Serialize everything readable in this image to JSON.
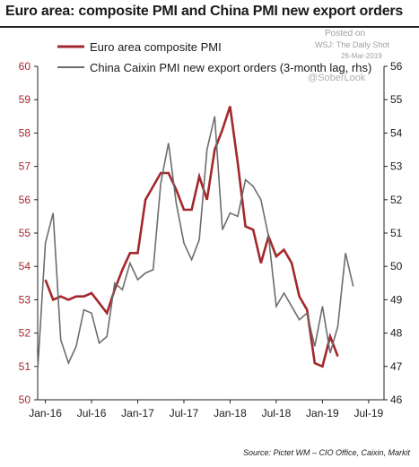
{
  "title": "Euro area: composite PMI and China PMI new export orders",
  "watermark": {
    "posted_on": "Posted on",
    "publisher": "WSJ: The Daily Shot",
    "date": "26-Mar-2019",
    "handle": "@SoberLook"
  },
  "source": "Source: Pictet WM – CIO Office, Caixin, Markit",
  "colors": {
    "euro_series": "#a3282c",
    "china_series": "#6d6d6d",
    "left_axis_text": "#a3282c",
    "right_axis_text": "#1a1a1a",
    "axis": "#222222"
  },
  "chart_data": {
    "type": "line",
    "title": "Euro area: composite PMI and China PMI new export orders",
    "legend_position": "top-left",
    "grid": false,
    "x_tick_labels": [
      "Jan-16",
      "Jul-16",
      "Jan-17",
      "Jul-17",
      "Jan-18",
      "Jul-18",
      "Jan-19",
      "Jul-19"
    ],
    "x_range": [
      "2015-12",
      "2019-09"
    ],
    "y_left": {
      "range": [
        50,
        60
      ],
      "ticks": [
        "50",
        "51",
        "52",
        "53",
        "54",
        "55",
        "56",
        "57",
        "58",
        "59",
        "60"
      ]
    },
    "y_right": {
      "range": [
        46,
        56
      ],
      "ticks": [
        "46",
        "47",
        "48",
        "49",
        "50",
        "51",
        "52",
        "53",
        "54",
        "55",
        "56"
      ]
    },
    "series": [
      {
        "name": "Euro area composite PMI",
        "axis": "left",
        "color": "#a3282c",
        "points": [
          [
            "2016-01",
            53.6
          ],
          [
            "2016-02",
            53.0
          ],
          [
            "2016-03",
            53.1
          ],
          [
            "2016-04",
            53.0
          ],
          [
            "2016-05",
            53.1
          ],
          [
            "2016-06",
            53.1
          ],
          [
            "2016-07",
            53.2
          ],
          [
            "2016-08",
            52.9
          ],
          [
            "2016-09",
            52.6
          ],
          [
            "2016-10",
            53.3
          ],
          [
            "2016-11",
            53.9
          ],
          [
            "2016-12",
            54.4
          ],
          [
            "2017-01",
            54.4
          ],
          [
            "2017-02",
            56.0
          ],
          [
            "2017-03",
            56.4
          ],
          [
            "2017-04",
            56.8
          ],
          [
            "2017-05",
            56.8
          ],
          [
            "2017-06",
            56.3
          ],
          [
            "2017-07",
            55.7
          ],
          [
            "2017-08",
            55.7
          ],
          [
            "2017-09",
            56.7
          ],
          [
            "2017-10",
            56.0
          ],
          [
            "2017-11",
            57.5
          ],
          [
            "2017-12",
            58.1
          ],
          [
            "2018-01",
            58.8
          ],
          [
            "2018-02",
            57.1
          ],
          [
            "2018-03",
            55.2
          ],
          [
            "2018-04",
            55.1
          ],
          [
            "2018-05",
            54.1
          ],
          [
            "2018-06",
            54.9
          ],
          [
            "2018-07",
            54.3
          ],
          [
            "2018-08",
            54.5
          ],
          [
            "2018-09",
            54.1
          ],
          [
            "2018-10",
            53.1
          ],
          [
            "2018-11",
            52.7
          ],
          [
            "2018-12",
            51.1
          ],
          [
            "2019-01",
            51.0
          ],
          [
            "2019-02",
            51.9
          ],
          [
            "2019-03",
            51.3
          ]
        ]
      },
      {
        "name": "China Caixin PMI new export orders (3-month lag, rhs)",
        "axis": "right",
        "color": "#6d6d6d",
        "points": [
          [
            "2015-12",
            46.9
          ],
          [
            "2016-01",
            50.7
          ],
          [
            "2016-02",
            51.6
          ],
          [
            "2016-03",
            47.8
          ],
          [
            "2016-04",
            47.1
          ],
          [
            "2016-05",
            47.6
          ],
          [
            "2016-06",
            48.7
          ],
          [
            "2016-07",
            48.6
          ],
          [
            "2016-08",
            47.7
          ],
          [
            "2016-09",
            47.9
          ],
          [
            "2016-10",
            49.5
          ],
          [
            "2016-11",
            49.3
          ],
          [
            "2016-12",
            50.1
          ],
          [
            "2017-01",
            49.6
          ],
          [
            "2017-02",
            49.8
          ],
          [
            "2017-03",
            49.9
          ],
          [
            "2017-04",
            52.5
          ],
          [
            "2017-05",
            53.7
          ],
          [
            "2017-06",
            51.9
          ],
          [
            "2017-07",
            50.7
          ],
          [
            "2017-08",
            50.2
          ],
          [
            "2017-09",
            50.8
          ],
          [
            "2017-10",
            53.5
          ],
          [
            "2017-11",
            54.5
          ],
          [
            "2017-12",
            51.1
          ],
          [
            "2018-01",
            51.6
          ],
          [
            "2018-02",
            51.5
          ],
          [
            "2018-03",
            52.6
          ],
          [
            "2018-04",
            52.4
          ],
          [
            "2018-05",
            52.0
          ],
          [
            "2018-06",
            50.9
          ],
          [
            "2018-07",
            48.8
          ],
          [
            "2018-08",
            49.2
          ],
          [
            "2018-09",
            48.8
          ],
          [
            "2018-10",
            48.4
          ],
          [
            "2018-11",
            48.6
          ],
          [
            "2018-12",
            47.6
          ],
          [
            "2019-01",
            48.8
          ],
          [
            "2019-02",
            47.4
          ],
          [
            "2019-03",
            48.2
          ],
          [
            "2019-04",
            50.4
          ],
          [
            "2019-05",
            49.4
          ]
        ]
      }
    ]
  }
}
